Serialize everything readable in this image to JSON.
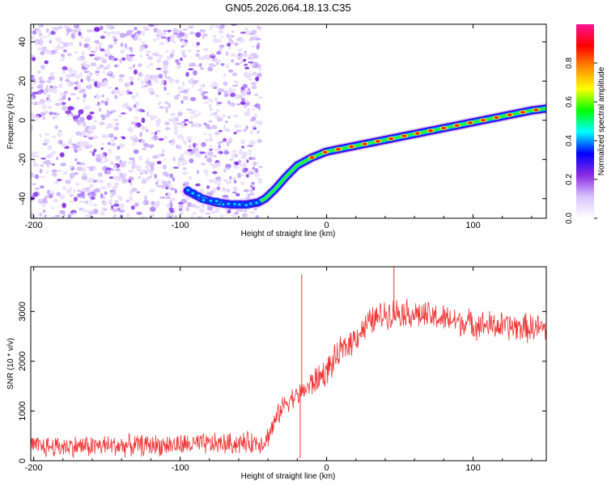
{
  "title": "GN05.2026.064.18.13.C35",
  "chart_data": [
    {
      "type": "heatmap",
      "xlabel": "Height of straight line (km)",
      "ylabel": "Frequency (Hz)",
      "xlim": [
        -202,
        150
      ],
      "ylim": [
        -50,
        49
      ],
      "x_ticks": [
        -200,
        -100,
        0,
        100
      ],
      "x_tick_labels": [
        "-200",
        "-100",
        "0",
        "100"
      ],
      "y_ticks": [
        -40,
        -20,
        0,
        20,
        40
      ],
      "y_tick_labels": [
        "-40",
        "-20",
        "0",
        "20",
        "40"
      ],
      "noise_region": {
        "x_from": -202,
        "x_to": -45,
        "y_from": -50,
        "y_to": 49
      },
      "track": {
        "x": [
          -95,
          -85,
          -75,
          -65,
          -55,
          -47,
          -42,
          -35,
          -28,
          -20,
          -10,
          0,
          20,
          40,
          60,
          80,
          100,
          120,
          140,
          150
        ],
        "y": [
          -36,
          -40,
          -42,
          -43,
          -43,
          -42,
          -40,
          -35,
          -29,
          -23,
          -19,
          -16,
          -13,
          -10,
          -7,
          -4,
          -1,
          2,
          5,
          6
        ]
      },
      "colorbar": {
        "label": "Normalized spectral amplitude",
        "range": [
          0,
          1
        ],
        "ticks": [
          0.0,
          0.2,
          0.4,
          0.6,
          0.8
        ],
        "tick_labels": [
          "0.0",
          "0.2",
          "0.4",
          "0.6",
          "0.8"
        ],
        "colors": [
          "#ffffff",
          "#d9c3ff",
          "#8a2be2",
          "#0000ff",
          "#00ffff",
          "#00ff00",
          "#ffff00",
          "#ff8c00",
          "#ff0000",
          "#ff1493"
        ]
      }
    },
    {
      "type": "line",
      "xlabel": "Height of straight line (km)",
      "ylabel": "SNR (10 * v/v)",
      "xlim": [
        -202,
        150
      ],
      "ylim": [
        0,
        3900
      ],
      "x_ticks": [
        -200,
        -100,
        0,
        100
      ],
      "x_tick_labels": [
        "-200",
        "-100",
        "0",
        "100"
      ],
      "y_ticks": [
        0,
        1000,
        2000,
        3000
      ],
      "y_tick_labels": [
        "0",
        "1000",
        "2000",
        "3000"
      ],
      "series": [
        {
          "name": "SNR",
          "color": "#ee3333",
          "trend_x": [
            -202,
            -150,
            -100,
            -60,
            -42,
            -35,
            -30,
            -25,
            -20,
            -10,
            0,
            10,
            20,
            30,
            40,
            50,
            60,
            80,
            100,
            120,
            150
          ],
          "trend_y": [
            280,
            300,
            320,
            350,
            380,
            800,
            1100,
            1250,
            1300,
            1550,
            1800,
            2200,
            2500,
            2800,
            2950,
            3000,
            2950,
            2850,
            2750,
            2700,
            2650
          ],
          "noise_amplitude": 280,
          "spikes": [
            {
              "x": -17,
              "y": 3750
            },
            {
              "x": -18,
              "y": 50
            },
            {
              "x": 46,
              "y": 3900
            }
          ]
        }
      ]
    }
  ]
}
